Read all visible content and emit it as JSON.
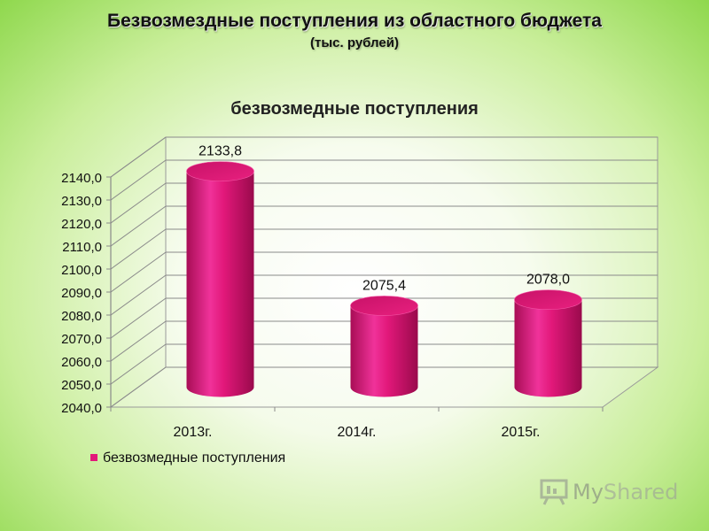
{
  "header": {
    "title": "Безвозмездные поступления из областного бюджета",
    "subtitle": "(тыс. рублей)"
  },
  "chart_data": {
    "type": "bar",
    "title": "безвозмедные поступления",
    "categories": [
      "2013г.",
      "2014г.",
      "2015г."
    ],
    "series": [
      {
        "name": "безвозмедные поступления",
        "values": [
          2133.8,
          2075.4,
          2078.0
        ],
        "labels": [
          "2133,8",
          "2075,4",
          "2078,0"
        ]
      }
    ],
    "ylim": [
      2040,
      2140
    ],
    "yticks": [
      "2040,0",
      "2050,0",
      "2060,0",
      "2070,0",
      "2080,0",
      "2090,0",
      "2100,0",
      "2110,0",
      "2120,0",
      "2130,0",
      "2140,0"
    ],
    "grid": true,
    "legend": "bottom-left",
    "bar_color": "#e2187a"
  },
  "watermark": {
    "text_a": "My",
    "text_b": "Shared",
    "icon": "presentation-board-icon"
  }
}
